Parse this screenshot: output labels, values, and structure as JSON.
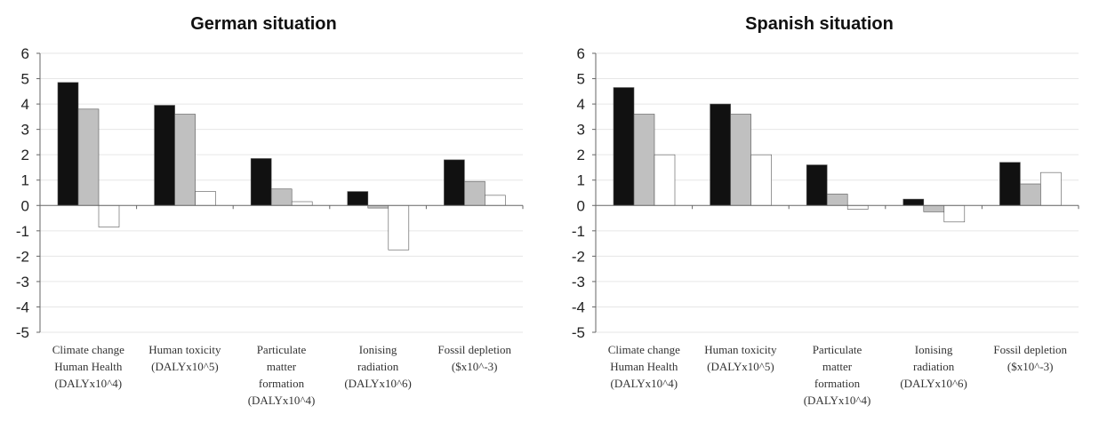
{
  "chart_data": [
    {
      "type": "bar",
      "title": "German situation",
      "categories": [
        [
          "Climate change",
          "Human Health",
          "(DALYx10^4)"
        ],
        [
          "Human toxicity",
          "(DALYx10^5)"
        ],
        [
          "Particulate",
          "matter",
          "formation",
          "(DALYx10^4)"
        ],
        [
          "Ionising",
          "radiation",
          "(DALYx10^6)"
        ],
        [
          "Fossil depletion",
          "($x10^-3)"
        ]
      ],
      "series": [
        {
          "color": "#111111",
          "values": [
            4.85,
            3.95,
            1.85,
            0.55,
            1.8
          ]
        },
        {
          "color": "#c0c0c0",
          "values": [
            3.8,
            3.6,
            0.65,
            -0.1,
            0.95
          ]
        },
        {
          "color": "#ffffff",
          "values": [
            -0.85,
            0.55,
            0.15,
            -1.75,
            0.4
          ]
        }
      ],
      "yticks": [
        "6",
        "5",
        "4",
        "3",
        "2",
        "1",
        "0",
        "-1",
        "-2",
        "-3",
        "-4",
        "-5"
      ],
      "ylim": [
        -5,
        6
      ],
      "grid": true
    },
    {
      "type": "bar",
      "title": "Spanish situation",
      "categories": [
        [
          "Climate change",
          "Human Health",
          "(DALYx10^4)"
        ],
        [
          "Human toxicity",
          "(DALYx10^5)"
        ],
        [
          "Particulate",
          "matter",
          "formation",
          "(DALYx10^4)"
        ],
        [
          "Ionising",
          "radiation",
          "(DALYx10^6)"
        ],
        [
          "Fossil depletion",
          "($x10^-3)"
        ]
      ],
      "series": [
        {
          "color": "#111111",
          "values": [
            4.65,
            4.0,
            1.6,
            0.25,
            1.7
          ]
        },
        {
          "color": "#c0c0c0",
          "values": [
            3.6,
            3.6,
            0.45,
            -0.25,
            0.85
          ]
        },
        {
          "color": "#ffffff",
          "values": [
            2.0,
            2.0,
            -0.15,
            -0.65,
            1.3
          ]
        }
      ],
      "yticks": [
        "6",
        "5",
        "4",
        "3",
        "2",
        "1",
        "0",
        "-1",
        "-2",
        "-3",
        "-4",
        "-5"
      ],
      "ylim": [
        -5,
        6
      ],
      "grid": true
    }
  ]
}
